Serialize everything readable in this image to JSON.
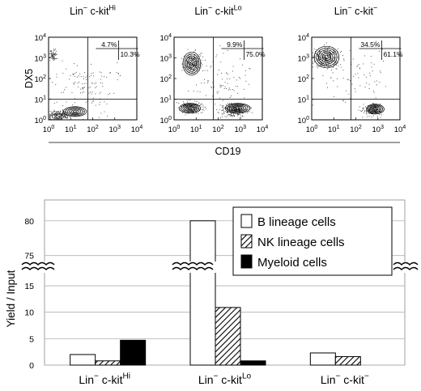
{
  "chart_data": [
    {
      "type": "scatter",
      "panels": [
        {
          "title_main": "Lin",
          "title_sup1": "−",
          "title_mid": " c-kit",
          "title_sup2": "Hi",
          "q_ul": "4.7%",
          "q_ur": "10.3%"
        },
        {
          "title_main": "Lin",
          "title_sup1": "−",
          "title_mid": " c-kit",
          "title_sup2": "Lo",
          "q_ul": "9.9%",
          "q_ur": "75.0%"
        },
        {
          "title_main": "Lin",
          "title_sup1": "−",
          "title_mid": " c-kit",
          "title_sup2": "−",
          "q_ul": "34.5%",
          "q_ur": "61.1%"
        }
      ],
      "ylabel": "DX5",
      "xlabel": "CD19",
      "scale": "log",
      "x_ticks": [
        {
          "base": "10",
          "exp": "0"
        },
        {
          "base": "10",
          "exp": "1"
        },
        {
          "base": "10",
          "exp": "2"
        },
        {
          "base": "10",
          "exp": "3"
        },
        {
          "base": "10",
          "exp": "4"
        }
      ],
      "y_ticks": [
        {
          "base": "10",
          "exp": "0"
        },
        {
          "base": "10",
          "exp": "1"
        },
        {
          "base": "10",
          "exp": "2"
        },
        {
          "base": "10",
          "exp": "3"
        },
        {
          "base": "10",
          "exp": "4"
        }
      ],
      "xlim": [
        1,
        10000
      ],
      "ylim": [
        1,
        10000
      ],
      "gate_x": 60,
      "gate_y": 10
    },
    {
      "type": "bar",
      "ylabel": "Yield / Input",
      "categories": [
        {
          "main": "Lin",
          "sup1": "−",
          "mid": " c-kit",
          "sup2": "Hi"
        },
        {
          "main": "Lin",
          "sup1": "−",
          "mid": " c-kit",
          "sup2": "Lo"
        },
        {
          "main": "Lin",
          "sup1": "−",
          "mid": " c-kit",
          "sup2": "−"
        }
      ],
      "series": [
        {
          "name": "B lineage cells",
          "values": [
            2.0,
            80.0,
            2.3
          ],
          "fill": "open",
          "color": "#ffffff"
        },
        {
          "name": "NK lineage cells",
          "values": [
            0.8,
            10.9,
            1.6
          ],
          "fill": "hatched",
          "color": "#000000"
        },
        {
          "name": "Myeloid cells",
          "values": [
            4.7,
            0.8,
            0
          ],
          "fill": "solid",
          "color": "#000000"
        }
      ],
      "y_ticks_lower": [
        "0",
        "5",
        "10",
        "15"
      ],
      "y_ticks_upper": [
        "75",
        "80"
      ],
      "axis_break": true,
      "ylim_lower": [
        0,
        17
      ],
      "ylim_upper": [
        74.5,
        83
      ],
      "grid": true,
      "legend_position": "top-right"
    }
  ]
}
